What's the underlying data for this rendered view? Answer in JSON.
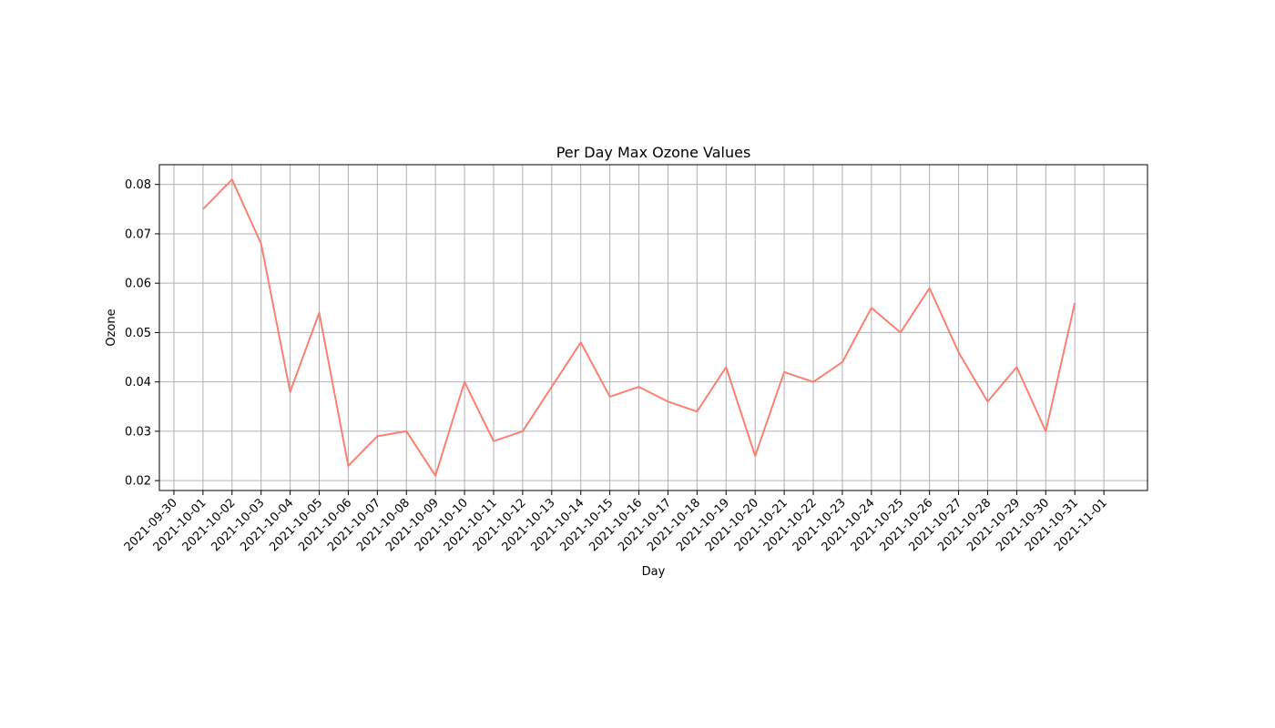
{
  "chart_data": {
    "type": "line",
    "title": "Per Day Max Ozone Values",
    "xlabel": "Day",
    "ylabel": "Ozone",
    "grid": true,
    "line_color": "#fa8072",
    "x": [
      "2021-10-01",
      "2021-10-02",
      "2021-10-03",
      "2021-10-04",
      "2021-10-05",
      "2021-10-06",
      "2021-10-07",
      "2021-10-08",
      "2021-10-09",
      "2021-10-10",
      "2021-10-11",
      "2021-10-12",
      "2021-10-13",
      "2021-10-14",
      "2021-10-15",
      "2021-10-16",
      "2021-10-17",
      "2021-10-18",
      "2021-10-19",
      "2021-10-20",
      "2021-10-21",
      "2021-10-22",
      "2021-10-23",
      "2021-10-24",
      "2021-10-25",
      "2021-10-26",
      "2021-10-27",
      "2021-10-28",
      "2021-10-29",
      "2021-10-30",
      "2021-10-31"
    ],
    "values": [
      0.075,
      0.081,
      0.068,
      0.038,
      0.054,
      0.023,
      0.029,
      0.03,
      0.021,
      0.04,
      0.028,
      0.03,
      0.039,
      0.048,
      0.037,
      0.039,
      0.036,
      0.034,
      0.043,
      0.025,
      0.042,
      0.04,
      0.044,
      0.055,
      0.05,
      0.059,
      0.046,
      0.036,
      0.043,
      0.03,
      0.056
    ],
    "xticks": [
      "2021-09-30",
      "2021-10-01",
      "2021-10-02",
      "2021-10-03",
      "2021-10-04",
      "2021-10-05",
      "2021-10-06",
      "2021-10-07",
      "2021-10-08",
      "2021-10-09",
      "2021-10-10",
      "2021-10-11",
      "2021-10-12",
      "2021-10-13",
      "2021-10-14",
      "2021-10-15",
      "2021-10-16",
      "2021-10-17",
      "2021-10-18",
      "2021-10-19",
      "2021-10-20",
      "2021-10-21",
      "2021-10-22",
      "2021-10-23",
      "2021-10-24",
      "2021-10-25",
      "2021-10-26",
      "2021-10-27",
      "2021-10-28",
      "2021-10-29",
      "2021-10-30",
      "2021-10-31",
      "2021-11-01"
    ],
    "yticks": [
      "0.02",
      "0.03",
      "0.04",
      "0.05",
      "0.06",
      "0.07",
      "0.08"
    ],
    "xlim": [
      "2021-09-29",
      "2021-11-01"
    ],
    "ylim": [
      0.018,
      0.084
    ]
  }
}
